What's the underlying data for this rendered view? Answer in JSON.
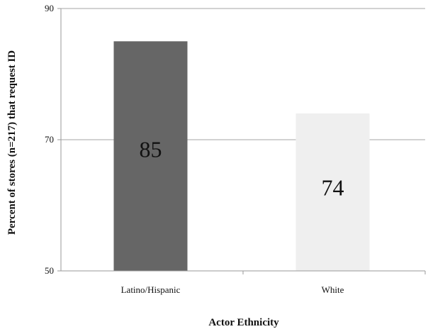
{
  "chart_data": {
    "type": "bar",
    "categories": [
      "Latino/Hispanic",
      "White"
    ],
    "values": [
      85,
      74
    ],
    "data_labels": [
      "85",
      "74"
    ],
    "xlabel": "Actor Ethnicity",
    "ylabel": "Percent of stores (n=217) that request ID",
    "ylim": [
      50,
      90
    ],
    "yticks": [
      "50",
      "70",
      "90"
    ],
    "grid": true,
    "legend": "none",
    "colors": [
      "#666666",
      "#efefef"
    ]
  }
}
